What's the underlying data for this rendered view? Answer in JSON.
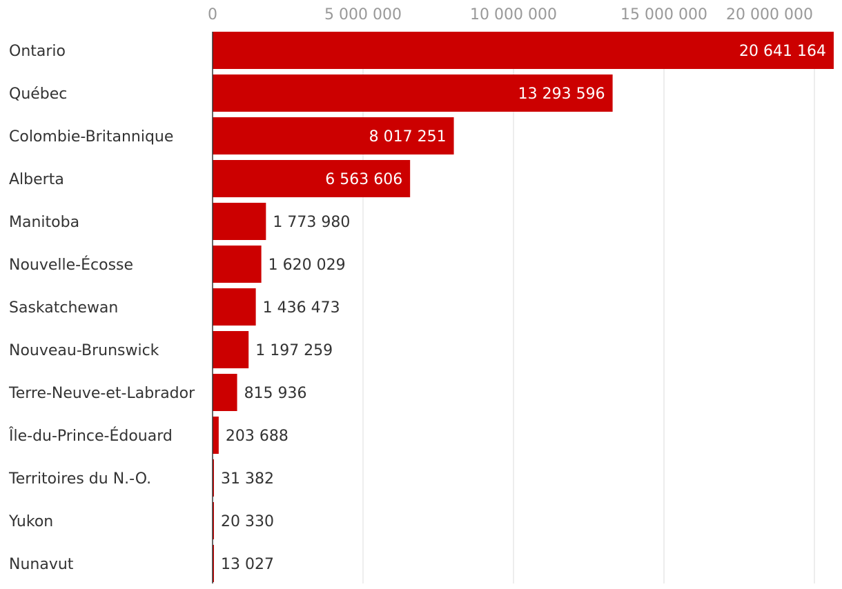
{
  "chart_data": {
    "type": "bar",
    "orientation": "horizontal",
    "categories": [
      "Ontario",
      "Québec",
      "Colombie-Britannique",
      "Alberta",
      "Manitoba",
      "Nouvelle-Écosse",
      "Saskatchewan",
      "Nouveau-Brunswick",
      "Terre-Neuve-et-Labrador",
      "Île-du-Prince-Édouard",
      "Territoires du N.-O.",
      "Yukon",
      "Nunavut"
    ],
    "values": [
      20641164,
      13293596,
      8017251,
      6563606,
      1773980,
      1620029,
      1436473,
      1197259,
      815936,
      203688,
      31382,
      20330,
      13027
    ],
    "value_labels": [
      "20 641 164",
      "13 293 596",
      "8 017 251",
      "6 563 606",
      "1 773 980",
      "1 620 029",
      "1 436 473",
      "1 197 259",
      "815 936",
      "203 688",
      "31 382",
      "20 330",
      "13 027"
    ],
    "xticks": [
      0,
      5000000,
      10000000,
      15000000,
      20000000
    ],
    "xtick_labels": [
      "0",
      "5 000 000",
      "10 000 000",
      "15 000 000",
      "20 000 000"
    ],
    "xlim": [
      0,
      20641164
    ],
    "grid": true,
    "bar_color": "#cc0000",
    "title": "",
    "xlabel": "",
    "ylabel": ""
  }
}
